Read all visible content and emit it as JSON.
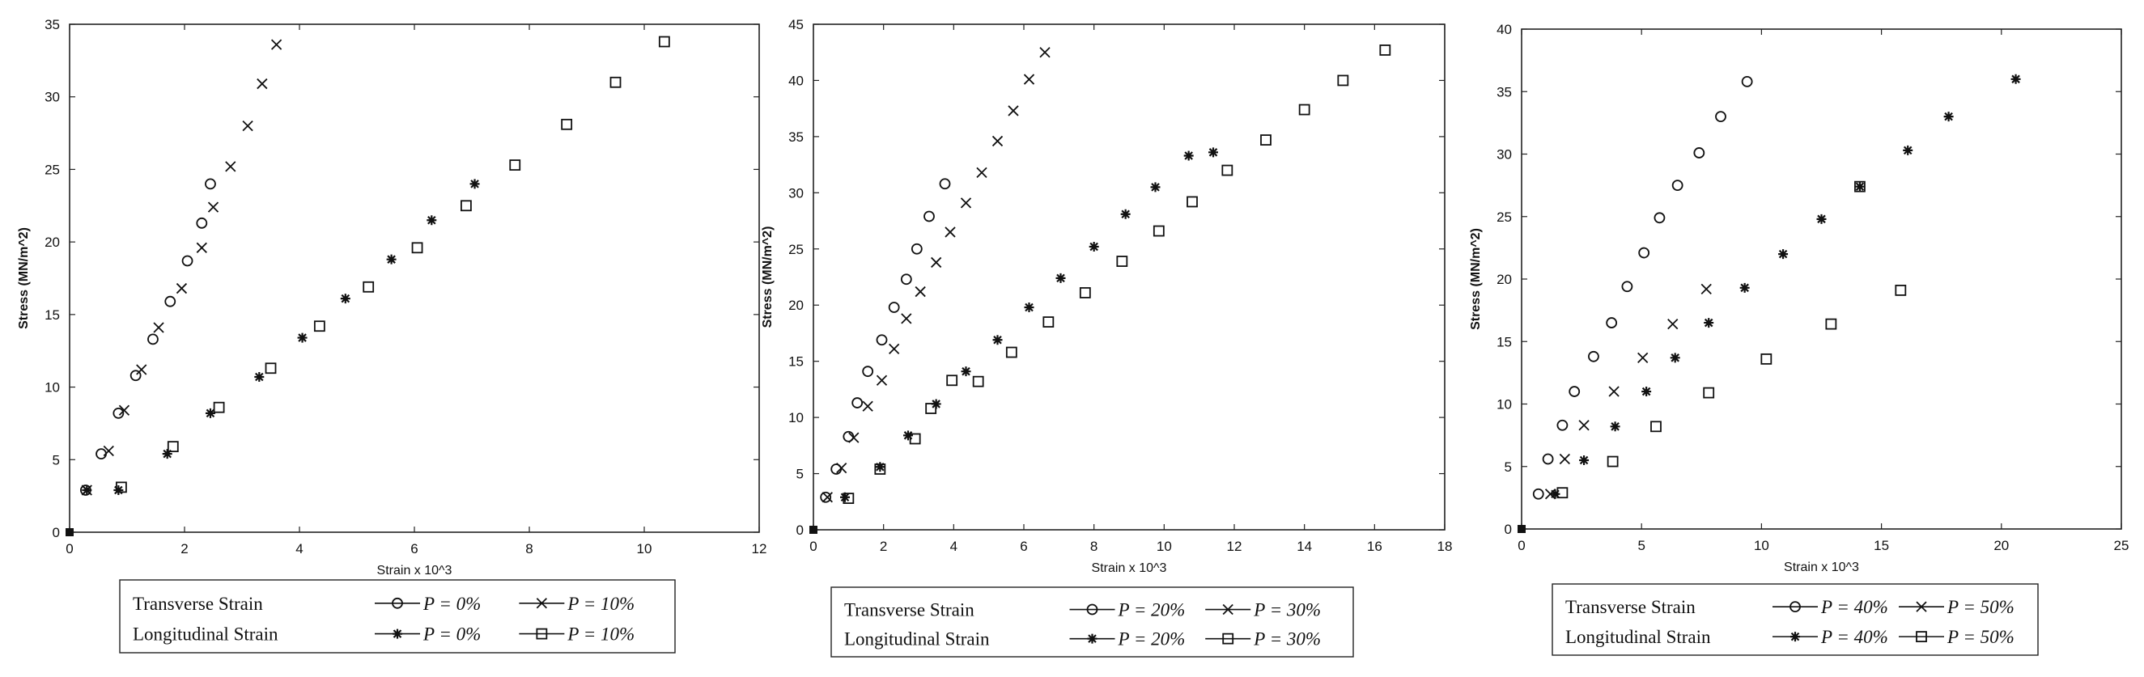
{
  "chart_data": [
    {
      "type": "scatter",
      "xlabel": "Strain x 10^3",
      "ylabel": "Stress (MN/m^2)",
      "xlim": [
        0,
        12
      ],
      "ylim": [
        0,
        35
      ],
      "xticks": [
        0,
        2,
        4,
        6,
        8,
        10,
        12
      ],
      "yticks": [
        0,
        5,
        10,
        15,
        20,
        25,
        30,
        35
      ],
      "grid": false,
      "legend_position": "below",
      "legend_row_labels": [
        "Transverse Strain",
        "Longitudinal Strain"
      ],
      "series": [
        {
          "name": "P = 0%",
          "group": "Transverse Strain",
          "marker": "circle",
          "x": [
            0.28,
            0.55,
            0.85,
            1.15,
            1.45,
            1.75,
            2.05,
            2.3,
            2.45
          ],
          "y": [
            2.9,
            5.4,
            8.2,
            10.8,
            13.3,
            15.9,
            18.7,
            21.3,
            24.0
          ]
        },
        {
          "name": "P = 10%",
          "group": "Transverse Strain",
          "marker": "x",
          "x": [
            0.3,
            0.68,
            0.95,
            1.25,
            1.55,
            1.95,
            2.3,
            2.5,
            2.8,
            3.1,
            3.35,
            3.6
          ],
          "y": [
            2.9,
            5.6,
            8.4,
            11.2,
            14.1,
            16.8,
            19.6,
            22.4,
            25.2,
            28.0,
            30.9,
            33.6
          ]
        },
        {
          "name": "P = 0%",
          "group": "Longitudinal Strain",
          "marker": "star",
          "x": [
            0.3,
            0.85,
            1.7,
            2.45,
            3.3,
            4.05,
            4.8,
            5.6,
            6.3,
            7.05
          ],
          "y": [
            2.9,
            2.9,
            5.4,
            8.2,
            10.7,
            13.4,
            16.1,
            18.8,
            21.5,
            24.0
          ]
        },
        {
          "name": "P = 10%",
          "group": "Longitudinal Strain",
          "marker": "square",
          "x": [
            0.9,
            1.8,
            2.6,
            3.5,
            4.35,
            5.2,
            6.05,
            6.9,
            7.75,
            8.65,
            9.5,
            10.35
          ],
          "y": [
            3.1,
            5.9,
            8.6,
            11.3,
            14.2,
            16.9,
            19.6,
            22.5,
            25.3,
            28.1,
            31.0,
            33.8
          ]
        }
      ]
    },
    {
      "type": "scatter",
      "xlabel": "Strain x 10^3",
      "ylabel": "Stress (MN/m^2)",
      "xlim": [
        0,
        18
      ],
      "ylim": [
        0,
        45
      ],
      "xticks": [
        0,
        2,
        4,
        6,
        8,
        10,
        12,
        14,
        16,
        18
      ],
      "yticks": [
        0,
        5,
        10,
        15,
        20,
        25,
        30,
        35,
        40,
        45
      ],
      "grid": false,
      "legend_position": "below",
      "legend_row_labels": [
        "Transverse Strain",
        "Longitudinal Strain"
      ],
      "series": [
        {
          "name": "P = 20%",
          "group": "Transverse Strain",
          "marker": "circle",
          "x": [
            0.35,
            0.65,
            1.0,
            1.25,
            1.55,
            1.95,
            2.3,
            2.65,
            2.95,
            3.3,
            3.75
          ],
          "y": [
            2.9,
            5.4,
            8.3,
            11.3,
            14.1,
            16.9,
            19.8,
            22.3,
            25.0,
            27.9,
            30.8
          ]
        },
        {
          "name": "P = 30%",
          "group": "Transverse Strain",
          "marker": "x",
          "x": [
            0.4,
            0.8,
            1.15,
            1.55,
            1.95,
            2.3,
            2.65,
            3.05,
            3.5,
            3.9,
            4.35,
            4.8,
            5.25,
            5.7,
            6.15,
            6.6
          ],
          "y": [
            2.9,
            5.5,
            8.2,
            11.0,
            13.3,
            16.1,
            18.8,
            21.2,
            23.8,
            26.5,
            29.1,
            31.8,
            34.6,
            37.3,
            40.1,
            42.5
          ]
        },
        {
          "name": "P = 20%",
          "group": "Longitudinal Strain",
          "marker": "star",
          "x": [
            0.9,
            1.9,
            2.7,
            3.5,
            4.35,
            5.25,
            6.15,
            7.05,
            8.0,
            8.9,
            9.75,
            10.7,
            11.4
          ],
          "y": [
            2.9,
            5.6,
            8.4,
            11.2,
            14.1,
            16.9,
            19.8,
            22.4,
            25.2,
            28.1,
            30.5,
            33.3,
            33.6
          ]
        },
        {
          "name": "P = 30%",
          "group": "Longitudinal Strain",
          "marker": "square",
          "x": [
            1.0,
            1.9,
            2.9,
            3.35,
            3.95,
            4.7,
            5.65,
            6.7,
            7.75,
            8.8,
            9.85,
            10.8,
            11.8,
            12.9,
            14.0,
            15.1,
            16.3
          ],
          "y": [
            2.8,
            5.4,
            8.1,
            10.8,
            13.3,
            13.2,
            15.8,
            18.5,
            21.1,
            23.9,
            26.6,
            29.2,
            32.0,
            34.7,
            37.4,
            40.0,
            42.7
          ]
        }
      ]
    },
    {
      "type": "scatter",
      "xlabel": "Strain x 10^3",
      "ylabel": "Stress (MN/m^2)",
      "xlim": [
        0,
        25
      ],
      "ylim": [
        0,
        40
      ],
      "xticks": [
        0,
        5,
        10,
        15,
        20,
        25
      ],
      "yticks": [
        0,
        5,
        10,
        15,
        20,
        25,
        30,
        35,
        40
      ],
      "grid": false,
      "legend_position": "below",
      "legend_row_labels": [
        "Transverse Strain",
        "Longitudinal Strain"
      ],
      "series": [
        {
          "name": "P = 40%",
          "group": "Transverse Strain",
          "marker": "circle",
          "x": [
            0.7,
            1.1,
            1.7,
            2.2,
            3.0,
            3.75,
            4.4,
            5.1,
            5.75,
            6.5,
            7.4,
            8.3,
            9.4
          ],
          "y": [
            2.8,
            5.6,
            8.3,
            11.0,
            13.8,
            16.5,
            19.4,
            22.1,
            24.9,
            27.5,
            30.1,
            33.0,
            35.8
          ]
        },
        {
          "name": "P = 50%",
          "group": "Transverse Strain",
          "marker": "x",
          "x": [
            1.2,
            1.8,
            2.6,
            3.85,
            5.05,
            6.3,
            7.7
          ],
          "y": [
            2.8,
            5.6,
            8.3,
            11.0,
            13.7,
            16.4,
            19.2
          ]
        },
        {
          "name": "P = 40%",
          "group": "Longitudinal Strain",
          "marker": "star",
          "x": [
            1.4,
            2.6,
            3.9,
            5.2,
            6.4,
            7.8,
            9.3,
            10.9,
            12.5,
            14.1,
            16.1,
            17.8,
            20.6
          ],
          "y": [
            2.8,
            5.5,
            8.2,
            11.0,
            13.7,
            16.5,
            19.3,
            22.0,
            24.8,
            27.4,
            30.3,
            33.0,
            36.0
          ]
        },
        {
          "name": "P = 50%",
          "group": "Longitudinal Strain",
          "marker": "square",
          "x": [
            1.7,
            3.8,
            5.6,
            7.8,
            10.2,
            12.9,
            15.8,
            14.1
          ],
          "y": [
            2.9,
            5.4,
            8.2,
            10.9,
            13.6,
            16.4,
            19.1,
            27.4
          ]
        }
      ]
    }
  ]
}
